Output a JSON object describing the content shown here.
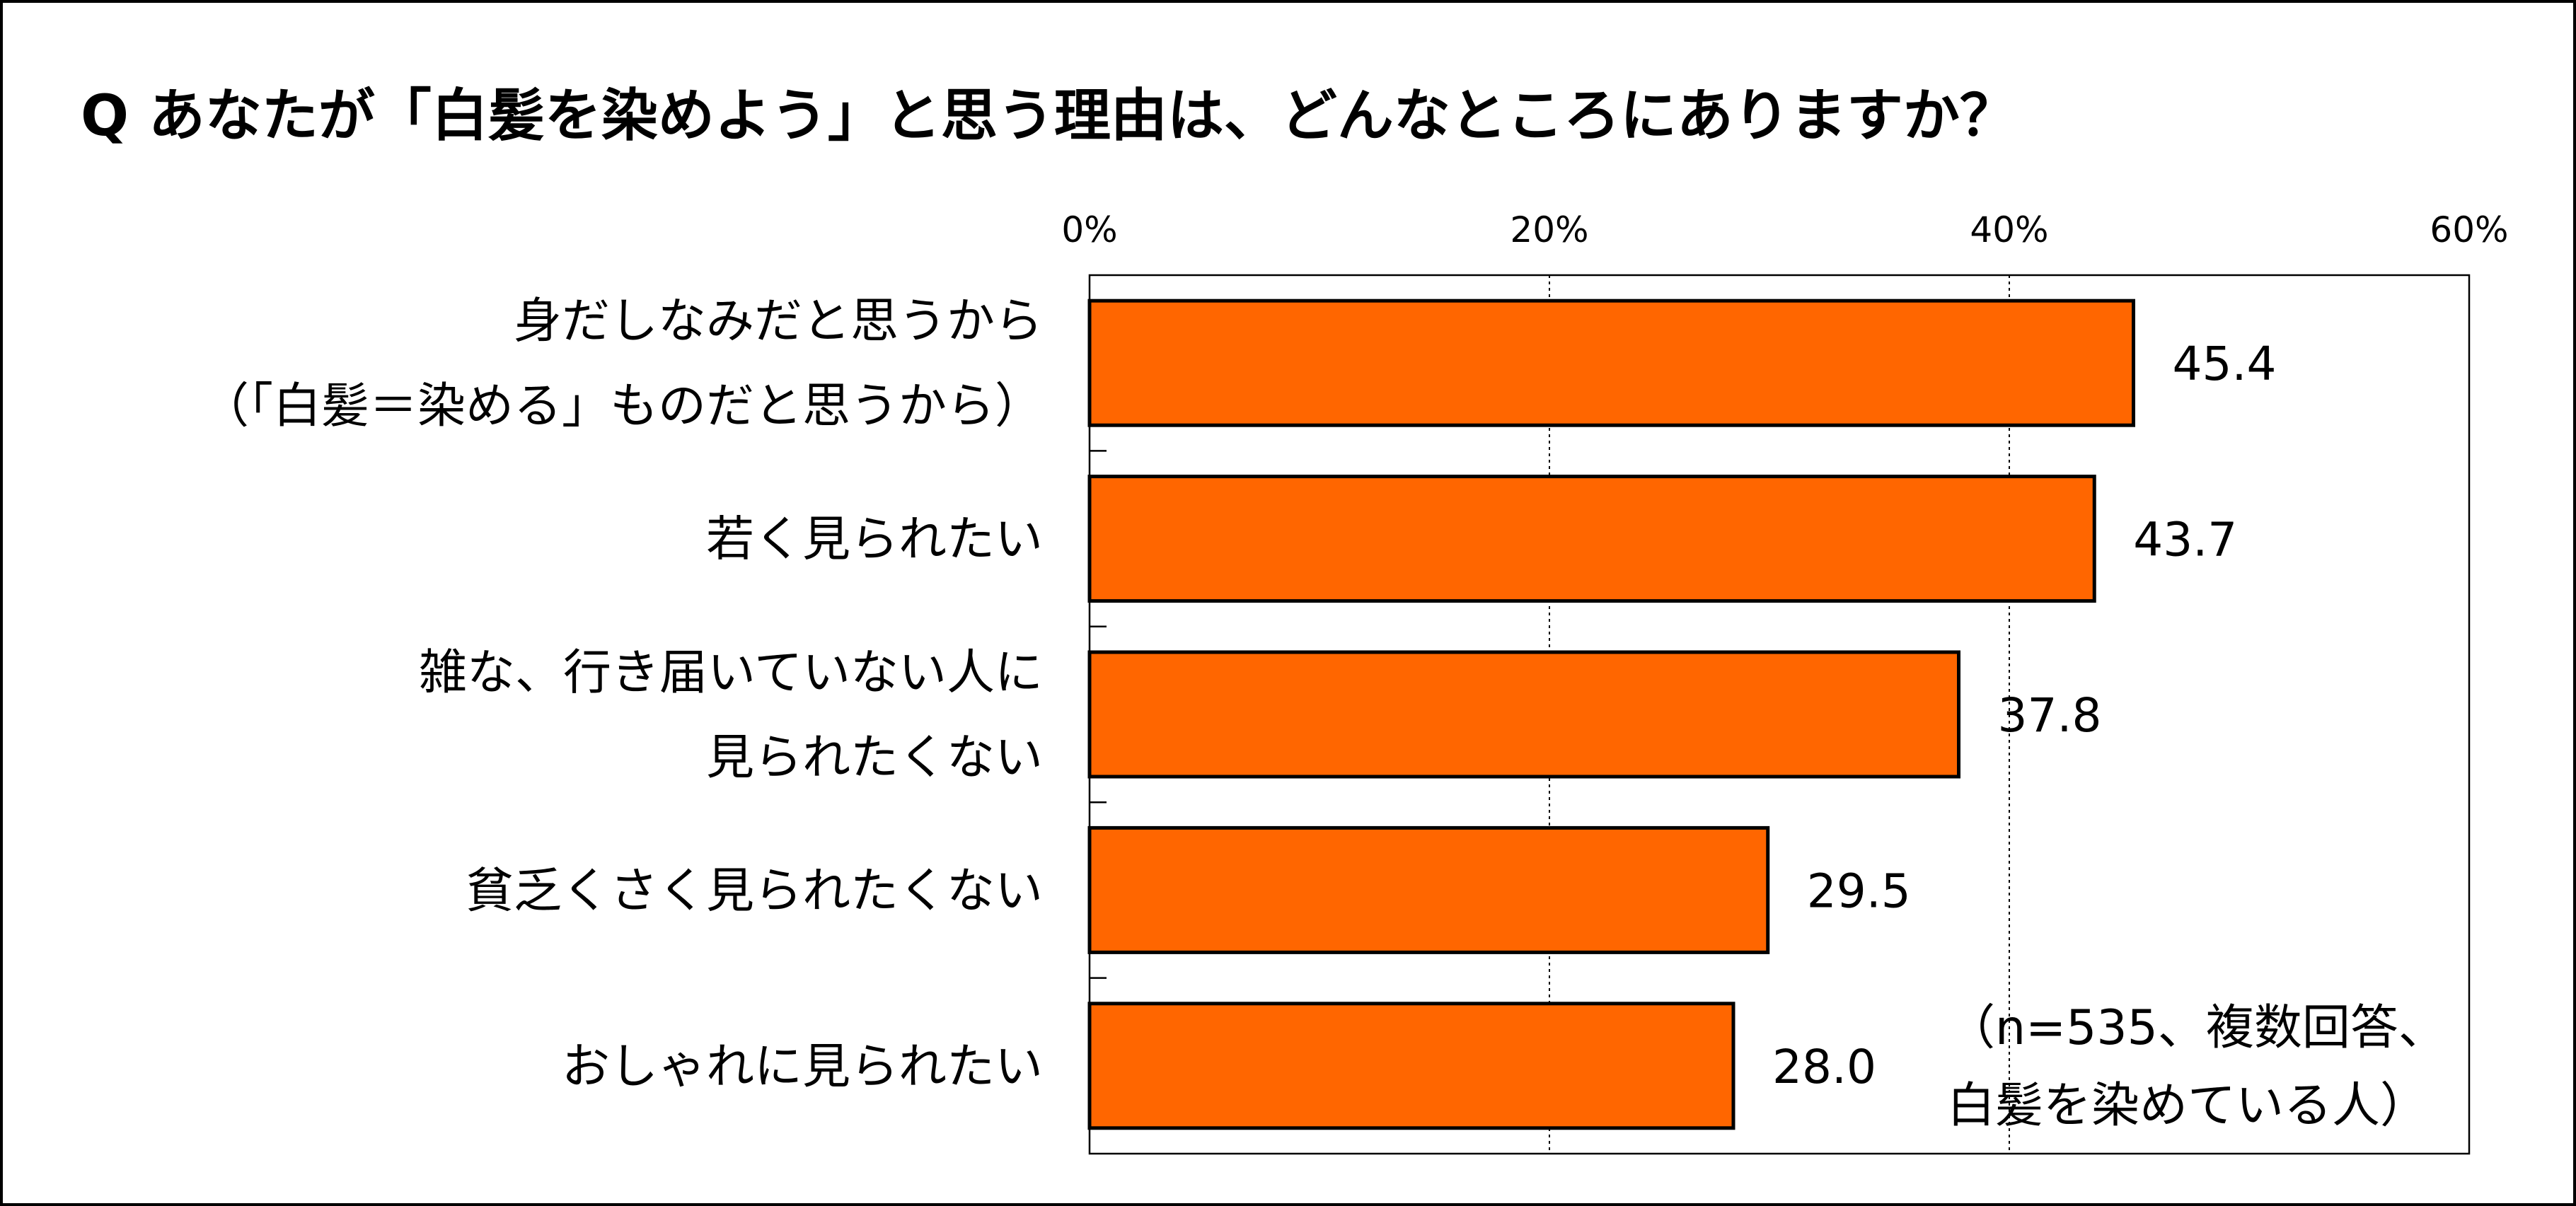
{
  "title": "Q あなたが「白髪を染めよう」と思う理由は、どんなところにありますか？",
  "note_lines": [
    "（n=535、複数回答、",
    "白髪を染めている人）"
  ],
  "colors": {
    "bar": "#ff6600",
    "bar_stroke": "#000000",
    "grid": "#000000"
  },
  "chart_data": {
    "type": "bar",
    "orientation": "horizontal",
    "categories": [
      [
        "身だしなみだと思うから",
        "（「白髪＝染める」ものだと思うから）"
      ],
      [
        "若く見られたい"
      ],
      [
        "雑な、行き届いていない人に",
        "見られたくない"
      ],
      [
        "貧乏くさく見られたくない"
      ],
      [
        "おしゃれに見られたい"
      ]
    ],
    "values": [
      45.4,
      43.7,
      37.8,
      29.5,
      28.0
    ],
    "value_labels": [
      "45.4",
      "43.7",
      "37.8",
      "29.5",
      "28.0"
    ],
    "xlim": [
      0,
      60
    ],
    "ticks": [
      0,
      20,
      40,
      60
    ],
    "tick_labels": [
      "0%",
      "20%",
      "40%",
      "60%"
    ],
    "grid": true,
    "grid_style": "dotted",
    "tick_position": "top"
  }
}
